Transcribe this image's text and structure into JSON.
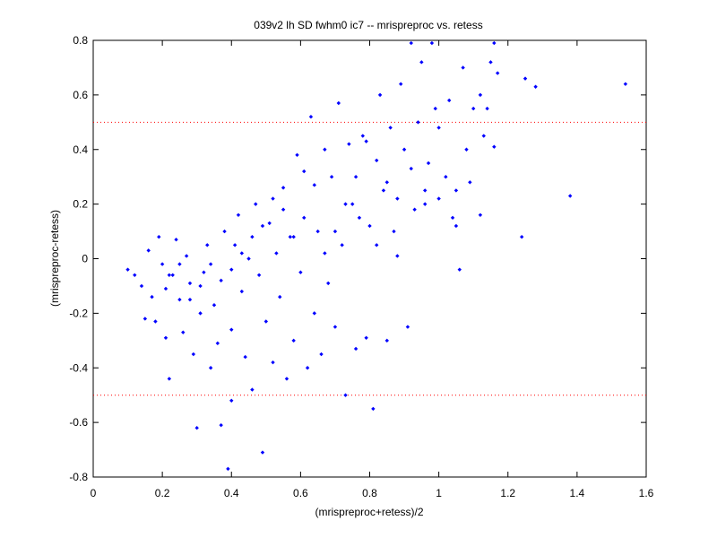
{
  "chart_data": {
    "type": "scatter",
    "title": "039v2 lh SD fwhm0 ic7 -- mrispreproc vs. retess",
    "xlabel": "(mrispreproc+retess)/2",
    "ylabel": "(mrispreproc-retess)",
    "xlim": [
      0,
      1.6
    ],
    "ylim": [
      -0.8,
      0.8
    ],
    "xticks": [
      "0",
      "0.2",
      "0.4",
      "0.6",
      "0.8",
      "1",
      "1.2",
      "1.4",
      "1.6"
    ],
    "yticks": [
      "-0.8",
      "-0.6",
      "-0.4",
      "-0.2",
      "0",
      "0.2",
      "0.4",
      "0.6",
      "0.8"
    ],
    "grid": false,
    "reference_lines": [
      {
        "axis": "y",
        "value": 0.5,
        "style": "dotted",
        "color": "#ff0000"
      },
      {
        "axis": "y",
        "value": -0.5,
        "style": "dotted",
        "color": "#ff0000"
      }
    ],
    "marker_color": "#0000ff",
    "series": [
      {
        "points": [
          [
            0.1,
            -0.04
          ],
          [
            0.12,
            -0.06
          ],
          [
            0.14,
            -0.1
          ],
          [
            0.15,
            -0.22
          ],
          [
            0.16,
            0.03
          ],
          [
            0.17,
            -0.14
          ],
          [
            0.18,
            -0.23
          ],
          [
            0.19,
            0.08
          ],
          [
            0.2,
            -0.02
          ],
          [
            0.21,
            -0.11
          ],
          [
            0.21,
            -0.29
          ],
          [
            0.22,
            -0.44
          ],
          [
            0.23,
            -0.06
          ],
          [
            0.24,
            0.07
          ],
          [
            0.25,
            -0.15
          ],
          [
            0.26,
            -0.27
          ],
          [
            0.27,
            0.01
          ],
          [
            0.28,
            -0.09
          ],
          [
            0.29,
            -0.35
          ],
          [
            0.3,
            -0.62
          ],
          [
            0.31,
            -0.2
          ],
          [
            0.32,
            -0.05
          ],
          [
            0.33,
            0.05
          ],
          [
            0.34,
            -0.4
          ],
          [
            0.35,
            -0.17
          ],
          [
            0.36,
            -0.31
          ],
          [
            0.37,
            -0.61
          ],
          [
            0.38,
            0.1
          ],
          [
            0.39,
            -0.77
          ],
          [
            0.4,
            -0.52
          ],
          [
            0.4,
            -0.26
          ],
          [
            0.41,
            0.05
          ],
          [
            0.42,
            0.16
          ],
          [
            0.43,
            -0.12
          ],
          [
            0.44,
            -0.36
          ],
          [
            0.45,
            0.0
          ],
          [
            0.46,
            -0.48
          ],
          [
            0.47,
            0.2
          ],
          [
            0.48,
            -0.06
          ],
          [
            0.49,
            -0.71
          ],
          [
            0.5,
            -0.23
          ],
          [
            0.51,
            0.13
          ],
          [
            0.52,
            -0.38
          ],
          [
            0.53,
            0.02
          ],
          [
            0.54,
            -0.14
          ],
          [
            0.55,
            0.26
          ],
          [
            0.56,
            -0.44
          ],
          [
            0.57,
            0.08
          ],
          [
            0.58,
            -0.3
          ],
          [
            0.59,
            0.38
          ],
          [
            0.6,
            -0.05
          ],
          [
            0.61,
            0.15
          ],
          [
            0.62,
            -0.4
          ],
          [
            0.63,
            0.52
          ],
          [
            0.64,
            -0.2
          ],
          [
            0.65,
            0.1
          ],
          [
            0.66,
            -0.35
          ],
          [
            0.67,
            0.4
          ],
          [
            0.68,
            -0.09
          ],
          [
            0.69,
            0.3
          ],
          [
            0.7,
            -0.25
          ],
          [
            0.71,
            0.57
          ],
          [
            0.72,
            0.05
          ],
          [
            0.73,
            -0.5
          ],
          [
            0.74,
            0.42
          ],
          [
            0.75,
            0.2
          ],
          [
            0.76,
            -0.33
          ],
          [
            0.77,
            0.15
          ],
          [
            0.78,
            0.45
          ],
          [
            0.79,
            -0.29
          ],
          [
            0.8,
            0.12
          ],
          [
            0.81,
            -0.55
          ],
          [
            0.82,
            0.05
          ],
          [
            0.83,
            0.6
          ],
          [
            0.84,
            0.25
          ],
          [
            0.85,
            -0.3
          ],
          [
            0.86,
            0.48
          ],
          [
            0.87,
            0.1
          ],
          [
            0.88,
            0.22
          ],
          [
            0.89,
            0.64
          ],
          [
            0.9,
            0.4
          ],
          [
            0.91,
            -0.25
          ],
          [
            0.92,
            0.79
          ],
          [
            0.93,
            0.18
          ],
          [
            0.94,
            0.5
          ],
          [
            0.95,
            0.72
          ],
          [
            0.96,
            0.25
          ],
          [
            0.97,
            0.35
          ],
          [
            0.98,
            0.79
          ],
          [
            0.99,
            0.55
          ],
          [
            1.0,
            0.22
          ],
          [
            1.02,
            0.3
          ],
          [
            1.03,
            0.58
          ],
          [
            1.04,
            0.15
          ],
          [
            1.05,
            0.12
          ],
          [
            1.06,
            -0.04
          ],
          [
            1.07,
            0.7
          ],
          [
            1.08,
            0.4
          ],
          [
            1.09,
            0.28
          ],
          [
            1.1,
            0.55
          ],
          [
            1.12,
            0.16
          ],
          [
            1.13,
            0.45
          ],
          [
            1.14,
            0.55
          ],
          [
            1.15,
            0.72
          ],
          [
            1.16,
            0.41
          ],
          [
            1.17,
            0.68
          ],
          [
            1.24,
            0.08
          ],
          [
            1.25,
            0.66
          ],
          [
            1.28,
            0.63
          ],
          [
            1.38,
            0.23
          ],
          [
            1.54,
            0.64
          ],
          [
            1.16,
            0.79
          ],
          [
            1.12,
            0.6
          ],
          [
            1.05,
            0.25
          ],
          [
            1.0,
            0.48
          ],
          [
            0.96,
            0.2
          ],
          [
            0.92,
            0.33
          ],
          [
            0.88,
            0.01
          ],
          [
            0.85,
            0.28
          ],
          [
            0.82,
            0.36
          ],
          [
            0.79,
            0.43
          ],
          [
            0.76,
            0.3
          ],
          [
            0.73,
            0.2
          ],
          [
            0.7,
            0.1
          ],
          [
            0.67,
            0.02
          ],
          [
            0.64,
            0.27
          ],
          [
            0.61,
            0.32
          ],
          [
            0.58,
            0.08
          ],
          [
            0.55,
            0.18
          ],
          [
            0.52,
            0.22
          ],
          [
            0.49,
            0.12
          ],
          [
            0.46,
            0.08
          ],
          [
            0.43,
            0.02
          ],
          [
            0.4,
            -0.04
          ],
          [
            0.37,
            -0.08
          ],
          [
            0.34,
            -0.02
          ],
          [
            0.31,
            -0.1
          ],
          [
            0.28,
            -0.15
          ],
          [
            0.25,
            -0.02
          ],
          [
            0.22,
            -0.06
          ]
        ]
      }
    ]
  }
}
